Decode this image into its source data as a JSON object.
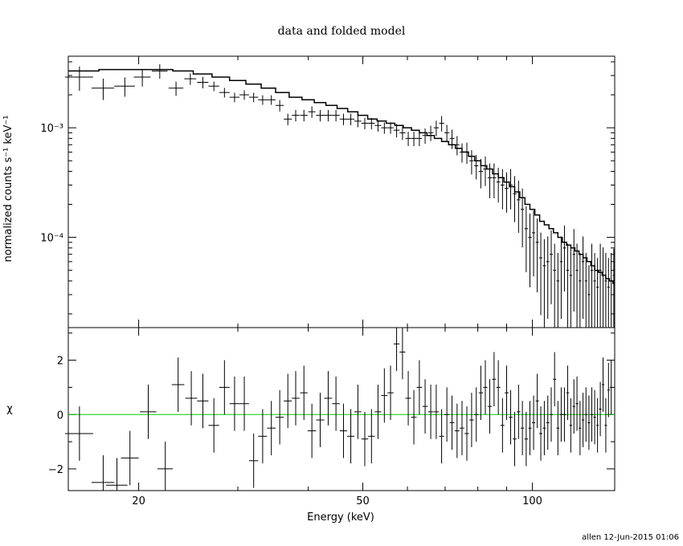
{
  "chart_data": {
    "type": "scatter",
    "title": "data and folded model",
    "footer": "allen 12-Jun-2015 01:06",
    "xlabel": "Energy (keV)",
    "x_scale": "log",
    "xlim": [
      15,
      140
    ],
    "x_ticks": [
      20,
      50,
      100
    ],
    "x_tick_labels": [
      "20",
      "50",
      "100"
    ],
    "panels": [
      {
        "id": "top",
        "ylabel": "normalized counts s⁻¹ keV⁻¹",
        "y_scale": "log",
        "ylim": [
          1.5e-05,
          0.0045
        ],
        "y_ticks": [
          0.001,
          0.0001
        ],
        "y_tick_labels": [
          "10⁻³",
          "10⁻⁴"
        ],
        "data": {
          "x": [
            15.7,
            17.3,
            18.9,
            20.3,
            21.8,
            23.3,
            24.7,
            26.0,
            27.2,
            28.4,
            29.6,
            30.8,
            32.0,
            33.2,
            34.4,
            35.6,
            36.8,
            38.0,
            39.3,
            40.6,
            42.0,
            43.4,
            44.8,
            46.2,
            47.6,
            49.0,
            50.4,
            51.8,
            53.2,
            54.6,
            56.0,
            57.4,
            58.8,
            60.2,
            61.6,
            63.0,
            64.5,
            66.0,
            67.5,
            69.0,
            70.5,
            72.0,
            73.5,
            75.0,
            76.5,
            78.0,
            79.5,
            81.0,
            82.5,
            84.0,
            85.5,
            87.0,
            88.5,
            90.0,
            91.5,
            93.0,
            94.5,
            96.0,
            97.5,
            99.0,
            100.5,
            102.0,
            103.5,
            105.0,
            106.5,
            108.0,
            109.5,
            111.0,
            112.5,
            114.0,
            115.5,
            117.0,
            118.5,
            120.0,
            121.5,
            123.0,
            124.5,
            126.0,
            127.5,
            129.0,
            130.5,
            132.0,
            133.5,
            135.0,
            136.5,
            138.0,
            139.5
          ],
          "xerr": [
            0.9,
            0.8,
            0.8,
            0.7,
            0.7,
            0.7,
            0.6,
            0.6,
            0.6,
            0.6,
            0.6,
            0.6,
            0.6,
            0.6,
            0.6,
            0.6,
            0.6,
            0.6,
            0.6,
            0.6,
            0.7,
            0.7,
            0.7,
            0.7,
            0.7,
            0.7,
            0.7,
            0.7,
            0.7,
            0.7,
            0.7,
            0.7,
            0.7,
            0.7,
            0.7,
            0.7,
            0.7,
            0.7,
            0.7,
            0.7,
            0.7,
            0.7,
            0.7,
            0.7,
            0.7,
            0.7,
            0.7,
            0.7,
            0.7,
            0.7,
            0.7,
            0.7,
            0.7,
            0.7,
            0.7,
            0.7,
            0.7,
            0.7,
            0.7,
            0.7,
            0.7,
            0.7,
            0.7,
            0.7,
            0.7,
            0.7,
            0.7,
            0.7,
            0.7,
            0.7,
            0.7,
            0.7,
            0.7,
            0.7,
            0.7,
            0.7,
            0.7,
            0.7,
            0.7,
            0.7,
            0.7,
            0.7,
            0.7,
            0.7,
            0.7,
            0.7,
            0.7
          ],
          "y": [
            0.0029,
            0.0023,
            0.0024,
            0.0029,
            0.0033,
            0.0023,
            0.0028,
            0.0026,
            0.0024,
            0.0021,
            0.0019,
            0.002,
            0.0019,
            0.0018,
            0.0018,
            0.0016,
            0.0012,
            0.0013,
            0.0013,
            0.0014,
            0.0013,
            0.0013,
            0.0013,
            0.0012,
            0.0012,
            0.00115,
            0.0011,
            0.0011,
            0.00105,
            0.001,
            0.001,
            0.00095,
            0.0009,
            0.0008,
            0.0008,
            0.0008,
            0.00085,
            0.0009,
            0.001,
            0.0011,
            0.0009,
            0.0008,
            0.0007,
            0.0006,
            0.0006,
            0.0005,
            0.00045,
            0.0004,
            0.00042,
            0.00035,
            0.00035,
            0.00032,
            0.0003,
            0.00028,
            0.0003,
            0.00025,
            0.00022,
            0.00018,
            0.00012,
            0.0001,
            0.00011,
            9e-05,
            6.5e-05,
            5.5e-05,
            6e-05,
            7e-05,
            5e-05,
            4e-05,
            6e-05,
            8e-05,
            5e-05,
            4.5e-05,
            7e-05,
            5e-05,
            4e-05,
            6e-05,
            4e-05,
            3e-05,
            5e-05,
            4e-05,
            3.5e-05,
            5e-05,
            4.5e-05,
            4e-05,
            3.5e-05,
            4e-05,
            4.5e-05
          ],
          "yerr_frac": [
            0.25,
            0.22,
            0.2,
            0.18,
            0.15,
            0.15,
            0.12,
            0.12,
            0.1,
            0.1,
            0.1,
            0.1,
            0.1,
            0.1,
            0.1,
            0.12,
            0.12,
            0.12,
            0.12,
            0.12,
            0.12,
            0.12,
            0.12,
            0.12,
            0.12,
            0.12,
            0.12,
            0.12,
            0.12,
            0.12,
            0.12,
            0.14,
            0.14,
            0.15,
            0.15,
            0.15,
            0.16,
            0.16,
            0.16,
            0.16,
            0.18,
            0.2,
            0.2,
            0.2,
            0.22,
            0.25,
            0.25,
            0.3,
            0.3,
            0.35,
            0.35,
            0.35,
            0.4,
            0.4,
            0.4,
            0.45,
            0.5,
            0.55,
            0.6,
            0.65,
            0.6,
            0.65,
            0.7,
            0.75,
            0.7,
            0.65,
            0.75,
            0.8,
            0.7,
            0.6,
            0.75,
            0.8,
            0.7,
            0.75,
            0.8,
            0.7,
            0.8,
            0.85,
            0.75,
            0.8,
            0.85,
            0.75,
            0.8,
            0.8,
            0.85,
            0.8,
            0.75
          ]
        },
        "model": {
          "edges": [
            15.0,
            17.0,
            19.0,
            21.0,
            23.0,
            25.0,
            27.0,
            29.0,
            31.0,
            33.0,
            35.0,
            37.0,
            39.0,
            41.0,
            43.0,
            45.0,
            47.0,
            49.0,
            51.0,
            53.0,
            55.0,
            57.0,
            59.0,
            61.0,
            63.0,
            65.0,
            67.0,
            69.0,
            71.0,
            73.0,
            75.0,
            77.0,
            79.0,
            81.0,
            83.0,
            85.0,
            87.0,
            89.0,
            91.0,
            93.0,
            95.0,
            97.0,
            99.0,
            101.0,
            103.0,
            105.0,
            107.0,
            109.0,
            111.0,
            113.0,
            115.0,
            117.0,
            119.0,
            121.0,
            123.0,
            125.0,
            127.0,
            129.0,
            131.0,
            133.0,
            135.0,
            137.0,
            139.0,
            140.0
          ],
          "values": [
            0.0033,
            0.0034,
            0.0034,
            0.0034,
            0.0033,
            0.0031,
            0.0029,
            0.0027,
            0.0025,
            0.0023,
            0.0021,
            0.0019,
            0.0018,
            0.0017,
            0.0016,
            0.0015,
            0.0014,
            0.0013,
            0.0012,
            0.00115,
            0.0011,
            0.00105,
            0.001,
            0.00095,
            0.0009,
            0.00085,
            0.0008,
            0.00075,
            0.0007,
            0.00065,
            0.0006,
            0.00055,
            0.0005,
            0.00045,
            0.00042,
            0.00038,
            0.00035,
            0.00032,
            0.00029,
            0.00026,
            0.00023,
            0.0002,
            0.00018,
            0.00016,
            0.00014,
            0.00013,
            0.00012,
            0.00011,
            0.0001,
            9e-05,
            8.5e-05,
            8e-05,
            7.5e-05,
            7e-05,
            6.5e-05,
            6e-05,
            5.5e-05,
            5e-05,
            4.8e-05,
            4.5e-05,
            4.2e-05,
            4e-05,
            3.8e-05
          ]
        }
      },
      {
        "id": "bottom",
        "ylabel": "χ",
        "y_scale": "linear",
        "ylim": [
          -2.8,
          3.2
        ],
        "y_ticks": [
          2,
          0,
          -2
        ],
        "y_tick_labels": [
          "2",
          "0",
          "−2"
        ],
        "zero_line_color": "#00cc00",
        "data": {
          "x": [
            15.7,
            17.3,
            18.3,
            19.3,
            20.8,
            22.3,
            23.5,
            24.8,
            26.0,
            27.2,
            28.4,
            29.6,
            30.8,
            32.0,
            33.2,
            34.4,
            35.6,
            36.8,
            38.0,
            39.3,
            40.6,
            42.0,
            43.4,
            44.8,
            46.2,
            47.6,
            49.0,
            50.4,
            51.8,
            53.2,
            54.6,
            56.0,
            57.4,
            58.8,
            60.2,
            61.6,
            63.0,
            64.5,
            66.0,
            67.5,
            69.0,
            70.5,
            72.0,
            73.5,
            75.0,
            76.5,
            78.0,
            79.5,
            81.0,
            82.5,
            84.0,
            85.5,
            87.0,
            88.5,
            90.0,
            91.5,
            93.0,
            94.5,
            96.0,
            97.5,
            99.0,
            100.5,
            102.0,
            103.5,
            105.0,
            106.5,
            108.0,
            109.5,
            111.0,
            112.5,
            114.0,
            115.5,
            117.0,
            118.5,
            120.0,
            121.5,
            123.0,
            124.5,
            126.0,
            127.5,
            129.0,
            130.5,
            132.0,
            133.5,
            135.0,
            136.5,
            138.0
          ],
          "xerr": [
            0.9,
            0.8,
            0.8,
            0.7,
            0.7,
            0.7,
            0.6,
            0.6,
            0.6,
            0.6,
            0.6,
            0.6,
            0.6,
            0.6,
            0.6,
            0.6,
            0.6,
            0.6,
            0.6,
            0.6,
            0.7,
            0.7,
            0.7,
            0.7,
            0.7,
            0.7,
            0.7,
            0.7,
            0.7,
            0.7,
            0.7,
            0.7,
            0.7,
            0.7,
            0.7,
            0.7,
            0.7,
            0.7,
            0.7,
            0.7,
            0.7,
            0.7,
            0.7,
            0.7,
            0.7,
            0.7,
            0.7,
            0.7,
            0.7,
            0.7,
            0.7,
            0.7,
            0.7,
            0.7,
            0.7,
            0.7,
            0.7,
            0.7,
            0.7,
            0.7,
            0.7,
            0.7,
            0.7,
            0.7,
            0.7,
            0.7,
            0.7,
            0.7,
            0.7,
            0.7,
            0.7,
            0.7,
            0.7,
            0.7,
            0.7,
            0.7,
            0.7,
            0.7,
            0.7,
            0.7,
            0.7,
            0.7,
            0.7,
            0.7,
            0.7,
            0.7,
            0.7
          ],
          "y": [
            -0.7,
            -2.5,
            -2.6,
            -1.6,
            0.1,
            -2.0,
            1.1,
            0.6,
            0.5,
            -0.4,
            1.0,
            0.4,
            0.4,
            -1.7,
            -0.8,
            -0.5,
            -0.1,
            0.5,
            0.6,
            0.8,
            -0.6,
            -0.2,
            0.6,
            0.4,
            -0.6,
            -0.8,
            0.1,
            -0.9,
            -0.8,
            0.1,
            0.7,
            0.8,
            2.6,
            2.3,
            0.6,
            -0.1,
            1.0,
            0.3,
            0.1,
            0.1,
            -0.8,
            0.0,
            -0.3,
            -0.6,
            -0.5,
            -0.7,
            -0.2,
            0.0,
            0.8,
            1.0,
            0.3,
            1.3,
            1.0,
            -0.4,
            0.8,
            -0.1,
            -0.9,
            0.1,
            -0.5,
            -0.9,
            -0.5,
            -0.3,
            0.5,
            -0.7,
            -0.5,
            -0.3,
            0.0,
            1.3,
            -0.5,
            0.0,
            0.0,
            0.8,
            -0.4,
            0.3,
            0.4,
            -0.5,
            -0.2,
            0.0,
            -0.3,
            0.0,
            -0.1,
            -0.4,
            0.2,
            1.1,
            -0.4,
            0.9,
            1.0
          ],
          "yerr": [
            1.0,
            1.0,
            1.0,
            1.0,
            1.0,
            1.0,
            1.0,
            1.0,
            1.0,
            1.0,
            1.0,
            1.0,
            1.0,
            1.0,
            1.0,
            1.0,
            1.0,
            1.0,
            1.0,
            1.0,
            1.0,
            1.0,
            1.0,
            1.0,
            1.0,
            1.0,
            1.0,
            1.0,
            1.0,
            1.0,
            1.0,
            1.0,
            1.0,
            1.0,
            1.0,
            1.0,
            1.0,
            1.0,
            1.0,
            1.0,
            1.0,
            1.0,
            1.0,
            1.0,
            1.0,
            1.0,
            1.0,
            1.0,
            1.0,
            1.0,
            1.0,
            1.0,
            1.0,
            1.0,
            1.0,
            1.0,
            1.0,
            1.0,
            1.0,
            1.0,
            1.0,
            1.0,
            1.0,
            1.0,
            1.0,
            1.0,
            1.0,
            1.0,
            1.0,
            1.0,
            1.0,
            1.0,
            1.0,
            1.0,
            1.0,
            1.0,
            1.0,
            1.0,
            1.0,
            1.0,
            1.0,
            1.0,
            1.0,
            1.0,
            1.0,
            1.0,
            1.0
          ]
        }
      }
    ]
  }
}
